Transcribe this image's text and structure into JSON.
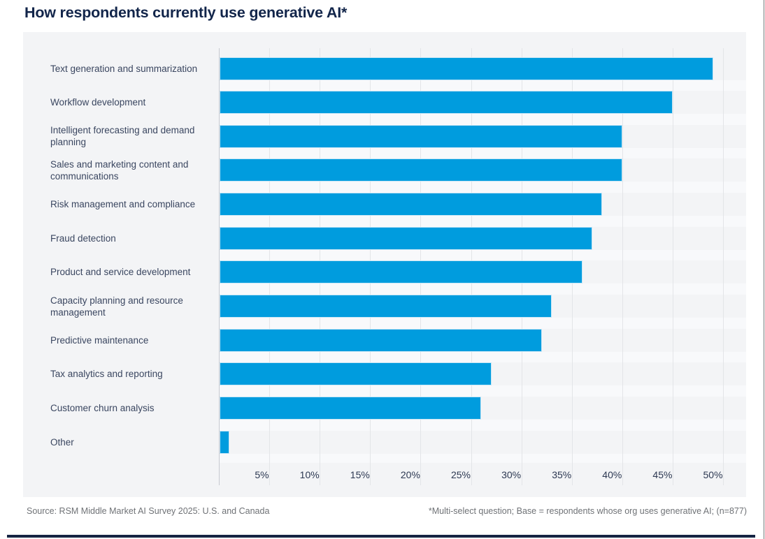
{
  "title": "How respondents currently use generative AI*",
  "chart_data": {
    "type": "bar",
    "orientation": "horizontal",
    "title": "How respondents currently use generative AI*",
    "categories": [
      "Text generation and summarization",
      "Workflow development",
      "Intelligent forecasting and demand planning",
      "Sales and marketing content and communications",
      "Risk management and compliance",
      "Fraud detection",
      "Product and service development",
      "Capacity planning and resource management",
      "Predictive maintenance",
      "Tax analytics and reporting",
      "Customer churn analysis",
      "Other"
    ],
    "values": [
      49,
      45,
      40,
      40,
      38,
      37,
      36,
      33,
      32,
      27,
      26,
      1
    ],
    "unit": "%",
    "x_tick_labels": [
      "5%",
      "10%",
      "15%",
      "20%",
      "25%",
      "30%",
      "35%",
      "40%",
      "45%",
      "50%"
    ],
    "x_tick_values": [
      5,
      10,
      15,
      20,
      25,
      30,
      35,
      40,
      45,
      50
    ],
    "xlim": [
      0,
      52.3
    ],
    "grid": true,
    "legend": "none",
    "data_labels": "none"
  },
  "footer": {
    "source": "Source: RSM Middle Market AI Survey 2025: U.S. and Canada",
    "note": "*Multi-select question; Base = respondents whose org uses generative AI; (n=877)"
  },
  "colors": {
    "bar": "#009CDE",
    "title_text": "#12254A",
    "category_label_text": "#3A4660",
    "tick_label_text": "#2C3852",
    "panel_background": "#F3F4F6",
    "row_gap_band": "#F8F9FB",
    "gridline": "#E3E5E8",
    "axis_line": "#C7CAD0",
    "footer_text": "#6F7276",
    "bottom_rule": "#152443",
    "right_border": "#77797B"
  }
}
